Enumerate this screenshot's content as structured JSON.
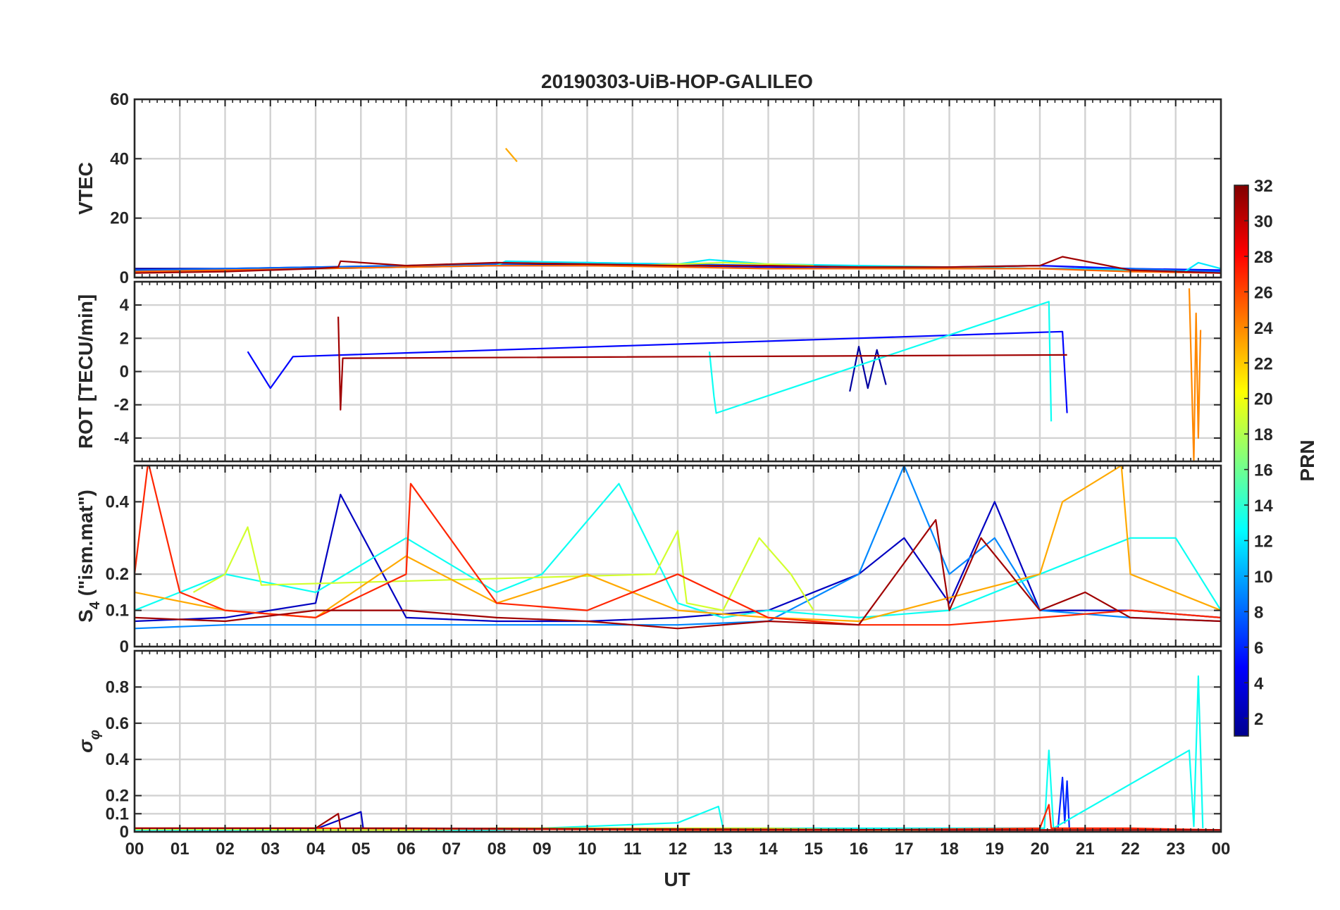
{
  "chart_data": {
    "type": "line",
    "title": "20190303-UiB-HOP-GALILEO",
    "xlabel": "UT",
    "x_ticks": [
      "00",
      "01",
      "02",
      "03",
      "04",
      "05",
      "06",
      "07",
      "08",
      "09",
      "10",
      "11",
      "12",
      "13",
      "14",
      "15",
      "16",
      "17",
      "18",
      "19",
      "20",
      "21",
      "22",
      "23",
      "00"
    ],
    "xlim": [
      0,
      24
    ],
    "colorbar": {
      "label": "PRN",
      "colormap": "jet",
      "clim": [
        1,
        32
      ],
      "ticks": [
        "2",
        "4",
        "6",
        "8",
        "10",
        "12",
        "14",
        "16",
        "18",
        "20",
        "22",
        "24",
        "26",
        "28",
        "30",
        "32"
      ]
    },
    "panels": [
      {
        "name": "vtec",
        "ylabel": "VTEC",
        "ylim": [
          0,
          60
        ],
        "y_ticks": [
          0,
          20,
          40,
          60
        ],
        "y_tick_labels": [
          "0",
          "20",
          "40",
          "60"
        ],
        "series": [
          {
            "prn": 2,
            "x": [
              0,
              2,
              4,
              6,
              8,
              10,
              12,
              14,
              16,
              18,
              20,
              22,
              24
            ],
            "y": [
              3,
              3,
              3.5,
              4,
              4.5,
              4.5,
              4,
              4,
              3.5,
              3.5,
              3,
              2.5,
              2
            ]
          },
          {
            "prn": 5,
            "x": [
              0,
              2,
              4,
              6,
              8,
              10,
              12,
              14,
              16,
              18,
              20,
              22,
              24
            ],
            "y": [
              2,
              2.5,
              3,
              3.5,
              4,
              4,
              4,
              3.5,
              3,
              3.5,
              4,
              3,
              2.5
            ]
          },
          {
            "prn": 8,
            "x": [
              0,
              2,
              4,
              6,
              8,
              10,
              12,
              14,
              16,
              18,
              20,
              22,
              24
            ],
            "y": [
              2.5,
              3,
              3.5,
              4,
              4.5,
              5,
              4.5,
              4,
              3.5,
              3,
              3,
              3,
              2
            ]
          },
          {
            "prn": 12,
            "x": [
              0,
              2,
              4,
              6,
              8,
              8.2,
              10,
              12,
              12.7,
              14,
              16,
              18,
              20,
              22,
              23.2,
              23.5,
              24
            ],
            "y": [
              1.5,
              2.5,
              3,
              3.5,
              4,
              5.5,
              5,
              4.5,
              6,
              4.5,
              4,
              3.5,
              3,
              2.5,
              2,
              5,
              3
            ]
          },
          {
            "prn": 19,
            "x": [
              11,
              12,
              13,
              14,
              15
            ],
            "y": [
              4,
              4.5,
              5,
              4.5,
              4
            ]
          },
          {
            "prn": 23,
            "x": [
              8.2,
              8.45
            ],
            "y": [
              43.5,
              39
            ]
          },
          {
            "prn": 25,
            "x": [
              0,
              2,
              4,
              6,
              8,
              10,
              12,
              14,
              16,
              18,
              20,
              22,
              24
            ],
            "y": [
              2,
              2.5,
              3,
              3.5,
              4,
              4,
              3.5,
              3,
              3,
              3,
              3,
              2,
              1.5
            ]
          },
          {
            "prn": 31,
            "x": [
              0,
              2,
              4,
              4.5,
              4.55,
              6,
              8,
              10,
              12,
              14,
              16,
              18,
              20,
              20.5,
              22,
              24
            ],
            "y": [
              1.5,
              2,
              3,
              3.5,
              5.5,
              4,
              5,
              4.5,
              4,
              4,
              3.5,
              3.5,
              4,
              7,
              2.5,
              1.5
            ]
          }
        ]
      },
      {
        "name": "rot",
        "ylabel": "ROT [TECU/min]",
        "ylim": [
          -5.4,
          5.4
        ],
        "y_ticks": [
          -4,
          -2,
          0,
          2,
          4
        ],
        "y_tick_labels": [
          "-4",
          "-2",
          "0",
          "2",
          "4"
        ],
        "series": [
          {
            "prn": 2,
            "x": [
              15.8,
              16.0,
              16.2,
              16.4,
              16.6
            ],
            "y": [
              -1.2,
              1.5,
              -1.0,
              1.3,
              -0.8
            ]
          },
          {
            "prn": 5,
            "x": [
              2.5,
              3.0,
              3.5,
              20.5,
              20.6
            ],
            "y": [
              1.2,
              -1.0,
              0.9,
              2.4,
              -2.5
            ]
          },
          {
            "prn": 13,
            "x": [
              12.7,
              12.8,
              12.85,
              20.2,
              20.25
            ],
            "y": [
              1.2,
              -1.5,
              -2.5,
              4.2,
              -3.0
            ]
          },
          {
            "prn": 24,
            "x": [
              23.3,
              23.4,
              23.45,
              23.5,
              23.55
            ],
            "y": [
              5.0,
              -5.4,
              3.5,
              -4.0,
              2.5
            ]
          },
          {
            "prn": 31,
            "x": [
              4.5,
              4.55,
              4.6,
              20.6
            ],
            "y": [
              3.3,
              -2.3,
              0.8,
              1.0
            ]
          }
        ]
      },
      {
        "name": "s4",
        "ylabel": "S4 (\"ism.mat\")",
        "ylabel_main": "S",
        "ylabel_sub": "4",
        "ylabel_rest": " (\"ism.mat\")",
        "ylim": [
          0,
          0.5
        ],
        "y_ticks": [
          0,
          0.1,
          0.2,
          0.4
        ],
        "y_tick_labels": [
          "0",
          "0.1",
          "0.2",
          "0.4"
        ],
        "series": [
          {
            "prn": 3,
            "x": [
              0,
              2,
              4,
              4.55,
              6,
              8,
              10,
              12,
              14,
              16,
              17,
              18,
              19,
              20,
              22,
              24
            ],
            "y": [
              0.07,
              0.08,
              0.12,
              0.42,
              0.08,
              0.07,
              0.07,
              0.08,
              0.1,
              0.2,
              0.3,
              0.12,
              0.4,
              0.1,
              0.1,
              0.08
            ]
          },
          {
            "prn": 9,
            "x": [
              0,
              2,
              4,
              6,
              8,
              10,
              12,
              14,
              16,
              17,
              18,
              19,
              20,
              22,
              24
            ],
            "y": [
              0.05,
              0.06,
              0.06,
              0.06,
              0.06,
              0.06,
              0.06,
              0.07,
              0.2,
              0.5,
              0.2,
              0.3,
              0.1,
              0.08,
              0.07
            ]
          },
          {
            "prn": 13,
            "x": [
              0,
              2,
              4,
              6,
              8,
              9,
              10.7,
              12,
              13,
              14,
              16,
              18,
              20,
              22,
              23,
              24
            ],
            "y": [
              0.1,
              0.2,
              0.15,
              0.3,
              0.15,
              0.2,
              0.45,
              0.12,
              0.08,
              0.1,
              0.08,
              0.1,
              0.2,
              0.3,
              0.3,
              0.1
            ]
          },
          {
            "prn": 19,
            "x": [
              1.3,
              2,
              2.5,
              2.8,
              11.5,
              12,
              12.2,
              13,
              13.8,
              14.5,
              15
            ],
            "y": [
              0.15,
              0.2,
              0.33,
              0.17,
              0.2,
              0.32,
              0.12,
              0.1,
              0.3,
              0.2,
              0.1
            ]
          },
          {
            "prn": 23,
            "x": [
              0,
              2,
              4,
              6,
              8,
              10,
              12,
              14,
              16,
              20,
              20.5,
              21.8,
              22,
              24
            ],
            "y": [
              0.15,
              0.1,
              0.08,
              0.25,
              0.12,
              0.2,
              0.1,
              0.08,
              0.07,
              0.2,
              0.4,
              0.5,
              0.2,
              0.1
            ]
          },
          {
            "prn": 27,
            "x": [
              0,
              0.3,
              1,
              2,
              4,
              6,
              6.1,
              8,
              10,
              12,
              14,
              16,
              18,
              20,
              22,
              24
            ],
            "y": [
              0.2,
              0.51,
              0.15,
              0.1,
              0.08,
              0.2,
              0.45,
              0.12,
              0.1,
              0.2,
              0.08,
              0.06,
              0.06,
              0.08,
              0.1,
              0.08
            ]
          },
          {
            "prn": 31,
            "x": [
              0,
              2,
              4,
              6,
              8,
              10,
              12,
              14,
              16,
              17.7,
              18,
              18.7,
              20,
              21,
              22,
              24
            ],
            "y": [
              0.08,
              0.07,
              0.1,
              0.1,
              0.08,
              0.07,
              0.05,
              0.07,
              0.06,
              0.35,
              0.1,
              0.3,
              0.1,
              0.15,
              0.08,
              0.07
            ]
          }
        ]
      },
      {
        "name": "sigma_phi",
        "ylabel": "σ φ",
        "ylabel_main": "σ",
        "ylabel_sub": "φ",
        "ylim": [
          0,
          1.0
        ],
        "y_ticks": [
          0,
          0.1,
          0.2,
          0.4,
          0.6,
          0.8
        ],
        "y_tick_labels": [
          "0",
          "0.1",
          "0.2",
          "0.4",
          "0.6",
          "0.8"
        ],
        "series": [
          {
            "prn": 3,
            "x": [
              0,
              4,
              5.0,
              5.05,
              6,
              10,
              15,
              20,
              24
            ],
            "y": [
              0.01,
              0.015,
              0.11,
              0.02,
              0.01,
              0.015,
              0.01,
              0.01,
              0.01
            ]
          },
          {
            "prn": 6,
            "x": [
              20.4,
              20.5,
              20.55,
              20.6,
              20.65
            ],
            "y": [
              0.02,
              0.3,
              0.05,
              0.28,
              0.02
            ]
          },
          {
            "prn": 13,
            "x": [
              0,
              4,
              8,
              10,
              12,
              12.9,
              13,
              20.1,
              20.2,
              20.3,
              23.3,
              23.4,
              23.5,
              23.6
            ],
            "y": [
              0.01,
              0.01,
              0.01,
              0.03,
              0.05,
              0.14,
              0.02,
              0.02,
              0.45,
              0.02,
              0.45,
              0.03,
              0.86,
              0.02
            ]
          },
          {
            "prn": 19,
            "x": [
              0,
              2,
              4,
              6,
              8,
              10,
              12,
              14,
              16,
              18,
              20,
              22,
              24
            ],
            "y": [
              0.015,
              0.015,
              0.01,
              0.01,
              0.02,
              0.02,
              0.02,
              0.02,
              0.01,
              0.01,
              0.01,
              0.01,
              0.01
            ]
          },
          {
            "prn": 27,
            "x": [
              0,
              4,
              8,
              12,
              16,
              20,
              20.2,
              20.25,
              22,
              24
            ],
            "y": [
              0.02,
              0.02,
              0.015,
              0.01,
              0.01,
              0.02,
              0.15,
              0.02,
              0.02,
              0.01
            ]
          },
          {
            "prn": 31,
            "x": [
              0,
              4,
              4.5,
              4.55,
              6,
              12,
              18,
              24
            ],
            "y": [
              0.02,
              0.02,
              0.1,
              0.02,
              0.02,
              0.015,
              0.01,
              0.01
            ]
          }
        ]
      }
    ]
  }
}
